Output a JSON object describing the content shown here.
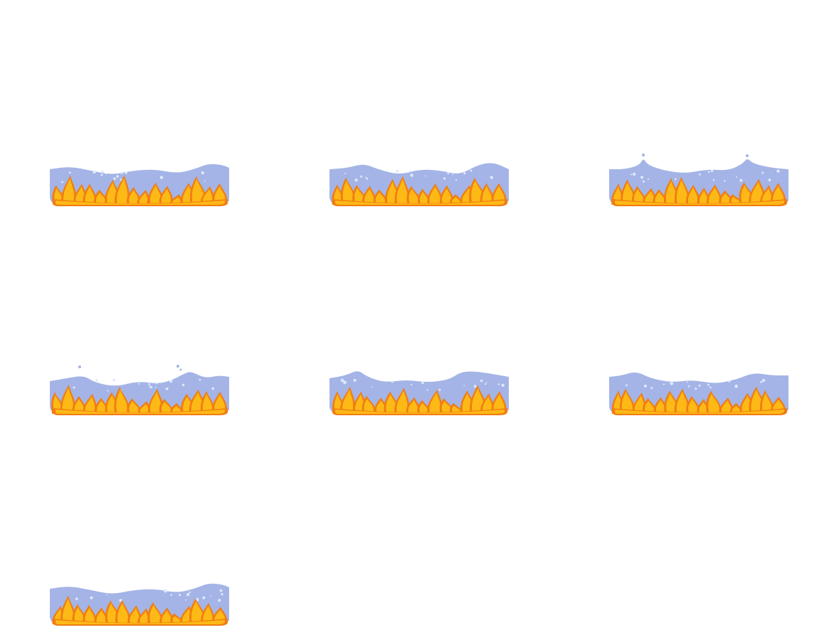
{
  "sprite_sheet": {
    "name": "fire-water-strip",
    "frame_count": 7,
    "columns": 3,
    "colors": {
      "background": "#ffffff",
      "water": "#a4b4e6",
      "water_bubble": "#dfe8fb",
      "flame_outer": "#f07d12",
      "flame_inner": "#fdb916",
      "flame_core": "#ffd23a"
    },
    "frames": [
      {
        "index": 0,
        "variant": "calm"
      },
      {
        "index": 1,
        "variant": "rising"
      },
      {
        "index": 2,
        "variant": "splash-small"
      },
      {
        "index": 3,
        "variant": "splash-drops"
      },
      {
        "index": 4,
        "variant": "swell"
      },
      {
        "index": 5,
        "variant": "settle"
      },
      {
        "index": 6,
        "variant": "calm"
      }
    ]
  }
}
